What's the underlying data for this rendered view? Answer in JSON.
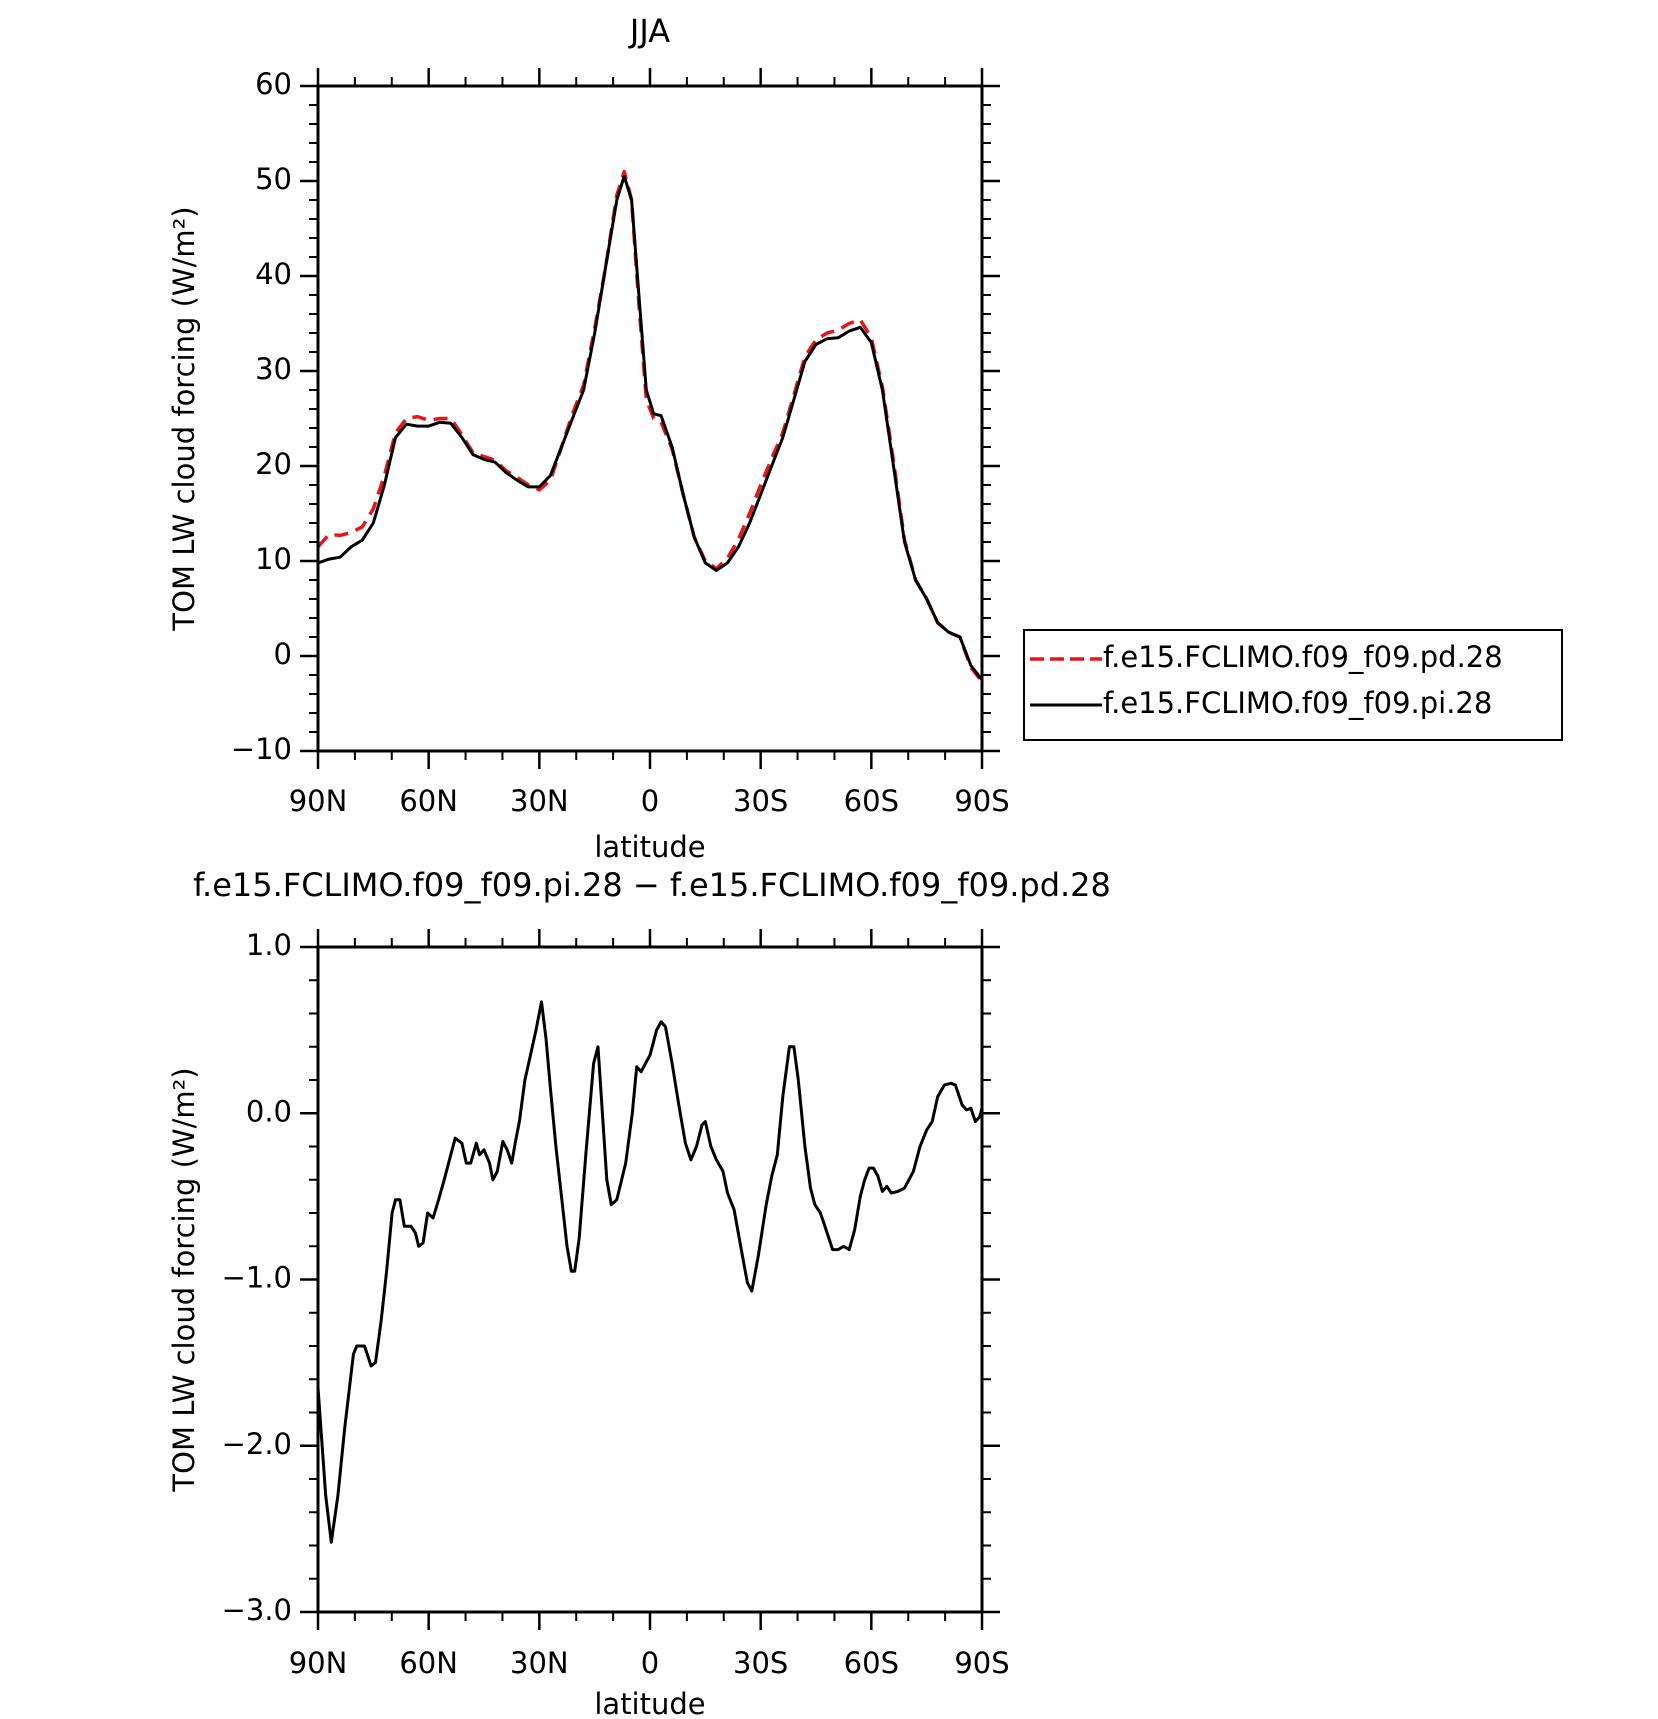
{
  "chart_data": [
    {
      "type": "line",
      "title": "JJA",
      "xlabel": "latitude",
      "ylabel": "TOM LW cloud forcing (W/m²)",
      "x": [
        90,
        87,
        84,
        81,
        78,
        75,
        72,
        69,
        66,
        63,
        60,
        57,
        54,
        51,
        48,
        45,
        42,
        39,
        36,
        33,
        30,
        27,
        24,
        21,
        18,
        15,
        12,
        9,
        7,
        5,
        3,
        1,
        -1,
        -3,
        -6,
        -9,
        -12,
        -15,
        -18,
        -21,
        -24,
        -27,
        -30,
        -33,
        -36,
        -39,
        -42,
        -45,
        -48,
        -51,
        -54,
        -57,
        -60,
        -63,
        -66,
        -69,
        -72,
        -75,
        -78,
        -81,
        -84,
        -87,
        -90
      ],
      "series": [
        {
          "name": "f.e15.FCLIMO.f09_f09.pd.28",
          "color": "#e8141a",
          "dash": true,
          "values": [
            11.5,
            12.8,
            12.7,
            13,
            13.6,
            15.5,
            19,
            23.5,
            25,
            25.2,
            24.8,
            25,
            25,
            23.3,
            21.4,
            21,
            20.6,
            19.5,
            18.8,
            18,
            17.5,
            18.5,
            22,
            25.5,
            28.5,
            34.5,
            41,
            48.5,
            51,
            48,
            37,
            27,
            25,
            24.6,
            21.8,
            17,
            12.5,
            10,
            9.2,
            10.3,
            12.3,
            15,
            18,
            20.8,
            23.5,
            27.5,
            31.5,
            33.3,
            34,
            34.3,
            35,
            35.4,
            33.5,
            28.3,
            20.5,
            12.2,
            8,
            6,
            3.5,
            2.5,
            2,
            -1.2,
            -2.7
          ]
        },
        {
          "name": "f.e15.FCLIMO.f09_f09.pi.28",
          "color": "#000000",
          "dash": false,
          "values": [
            9.8,
            10.2,
            10.4,
            11.5,
            12.2,
            14,
            18,
            23,
            24.4,
            24.2,
            24.2,
            24.6,
            24.5,
            23,
            21.2,
            20.7,
            20.4,
            19.3,
            18.5,
            17.8,
            17.8,
            19,
            22,
            25,
            28,
            34,
            41,
            48,
            50.5,
            48,
            38,
            28,
            25.5,
            25.3,
            22,
            17,
            12.5,
            9.8,
            9,
            9.8,
            11.5,
            14,
            17,
            20,
            23,
            27,
            31,
            32.8,
            33.4,
            33.5,
            34.2,
            34.6,
            33,
            28,
            20,
            12,
            8,
            6,
            3.5,
            2.5,
            2,
            -1,
            -2.5
          ]
        }
      ],
      "xlim": [
        90,
        -90
      ],
      "xticks": [
        {
          "value": 90,
          "label": "90N"
        },
        {
          "value": 60,
          "label": "60N"
        },
        {
          "value": 30,
          "label": "30N"
        },
        0,
        {
          "value": -30,
          "label": "30S"
        },
        {
          "value": -60,
          "label": "60S"
        },
        {
          "value": -90,
          "label": "90S"
        }
      ],
      "ylim": [
        -10,
        60
      ],
      "yticks": [
        {
          "value": -10,
          "label": "−10"
        },
        0,
        10,
        20,
        30,
        40,
        50,
        60
      ],
      "legend": "right"
    },
    {
      "type": "line",
      "title": "f.e15.FCLIMO.f09_f09.pi.28 − f.e15.FCLIMO.f09_f09.pd.28",
      "xlabel": "latitude",
      "ylabel": "TOM LW cloud forcing (W/m²)",
      "x": [
        90,
        87.9,
        86.4,
        84.6,
        82.8,
        80.4,
        79.5,
        77.4,
        75.6,
        74.4,
        72.9,
        71.4,
        69.9,
        69,
        67.8,
        66.6,
        64.8,
        63.6,
        62.7,
        61.5,
        60.3,
        58.8,
        57.3,
        55.8,
        54,
        52.8,
        51,
        49.8,
        48.6,
        47.1,
        46.2,
        45,
        43.5,
        42.6,
        41.4,
        39.9,
        38.7,
        37.5,
        36.3,
        35.4,
        33.9,
        32.4,
        30.9,
        29.4,
        28.2,
        27,
        25.5,
        24,
        22.5,
        21.3,
        20.4,
        19.2,
        17.4,
        15.3,
        14.1,
        12.9,
        11.7,
        10.5,
        9,
        6.6,
        4.8,
        3.6,
        2.4,
        0,
        -1.8,
        -3,
        -4.2,
        -6,
        -7.8,
        -9.6,
        -11.1,
        -12.6,
        -14.1,
        -15,
        -16.5,
        -18,
        -19.8,
        -21,
        -22.8,
        -24.6,
        -26.4,
        -27.6,
        -29.4,
        -31.5,
        -33,
        -34.5,
        -36,
        -37.8,
        -39,
        -40.2,
        -42,
        -43.5,
        -44.7,
        -46.2,
        -48,
        -49.5,
        -51,
        -52.5,
        -54,
        -55.5,
        -57,
        -58.2,
        -59.4,
        -60.6,
        -61.8,
        -63,
        -64.2,
        -65.4,
        -67.2,
        -69,
        -71.4,
        -73.2,
        -75,
        -76.5,
        -78,
        -79.8,
        -81.6,
        -82.8,
        -84.6,
        -85.8,
        -87,
        -88.2,
        -89.4,
        -90
      ],
      "series": [
        {
          "color": "#000000",
          "dash": false,
          "values": [
            -1.65,
            -2.3,
            -2.58,
            -2.3,
            -1.9,
            -1.45,
            -1.4,
            -1.4,
            -1.52,
            -1.5,
            -1.25,
            -0.95,
            -0.6,
            -0.52,
            -0.52,
            -0.68,
            -0.68,
            -0.72,
            -0.8,
            -0.78,
            -0.6,
            -0.63,
            -0.52,
            -0.4,
            -0.25,
            -0.15,
            -0.18,
            -0.3,
            -0.3,
            -0.18,
            -0.25,
            -0.22,
            -0.3,
            -0.4,
            -0.35,
            -0.17,
            -0.22,
            -0.3,
            -0.15,
            -0.05,
            0.2,
            0.35,
            0.5,
            0.67,
            0.45,
            0.15,
            -0.2,
            -0.5,
            -0.8,
            -0.95,
            -0.95,
            -0.75,
            -0.25,
            0.3,
            0.4,
            0.0,
            -0.4,
            -0.55,
            -0.52,
            -0.3,
            0.0,
            0.28,
            0.25,
            0.35,
            0.5,
            0.55,
            0.52,
            0.3,
            0.05,
            -0.18,
            -0.28,
            -0.2,
            -0.07,
            -0.05,
            -0.2,
            -0.28,
            -0.35,
            -0.48,
            -0.58,
            -0.8,
            -1.02,
            -1.07,
            -0.85,
            -0.55,
            -0.38,
            -0.25,
            0.1,
            0.4,
            0.4,
            0.2,
            -0.2,
            -0.45,
            -0.55,
            -0.6,
            -0.72,
            -0.82,
            -0.82,
            -0.8,
            -0.82,
            -0.7,
            -0.5,
            -0.4,
            -0.33,
            -0.33,
            -0.38,
            -0.47,
            -0.44,
            -0.48,
            -0.47,
            -0.45,
            -0.35,
            -0.2,
            -0.1,
            -0.05,
            0.1,
            0.17,
            0.18,
            0.17,
            0.05,
            0.02,
            0.03,
            -0.05,
            -0.02,
            0.03
          ]
        }
      ],
      "xlim": [
        90,
        -90
      ],
      "xticks": [
        {
          "value": 90,
          "label": "90N"
        },
        {
          "value": 60,
          "label": "60N"
        },
        {
          "value": 30,
          "label": "30N"
        },
        0,
        {
          "value": -30,
          "label": "30S"
        },
        {
          "value": -60,
          "label": "60S"
        },
        {
          "value": -90,
          "label": "90S"
        }
      ],
      "ylim": [
        -3,
        1
      ],
      "yticks": [
        {
          "value": -3,
          "label": "−3.0"
        },
        {
          "value": -2,
          "label": "−2.0"
        },
        {
          "value": -1,
          "label": "−1.0"
        },
        {
          "value": 0,
          "label": "0.0"
        },
        {
          "value": 1,
          "label": "1.0"
        }
      ]
    }
  ]
}
